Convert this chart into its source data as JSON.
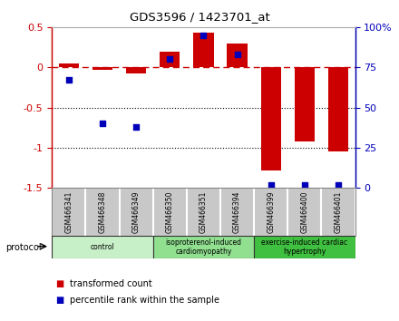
{
  "title": "GDS3596 / 1423701_at",
  "samples": [
    "GSM466341",
    "GSM466348",
    "GSM466349",
    "GSM466350",
    "GSM466351",
    "GSM466394",
    "GSM466399",
    "GSM466400",
    "GSM466401"
  ],
  "transformed_count": [
    0.05,
    -0.03,
    -0.08,
    0.2,
    0.43,
    0.3,
    -1.28,
    -0.92,
    -1.05
  ],
  "percentile_rank_pct": [
    67,
    40,
    38,
    80,
    95,
    83,
    2,
    2,
    2
  ],
  "ylim_left": [
    -1.5,
    0.5
  ],
  "ylim_right": [
    0,
    100
  ],
  "yticks_left": [
    -1.5,
    -1.0,
    -0.5,
    0.0,
    0.5
  ],
  "ytick_labels_left": [
    "-1.5",
    "-1",
    "-0.5",
    "0",
    "0.5"
  ],
  "yticks_right": [
    0,
    25,
    50,
    75,
    100
  ],
  "ytick_labels_right": [
    "0",
    "25",
    "50",
    "75",
    "100%"
  ],
  "hlines_dotted": [
    -0.5,
    -1.0
  ],
  "hline_dash": 0.0,
  "protocol_groups": [
    {
      "label": "control",
      "start": 0,
      "end": 3,
      "color": "#c8f0c8"
    },
    {
      "label": "isoproterenol-induced\ncardiomyopathy",
      "start": 3,
      "end": 6,
      "color": "#90e090"
    },
    {
      "label": "exercise-induced cardiac\nhypertrophy",
      "start": 6,
      "end": 9,
      "color": "#40c040"
    }
  ],
  "bar_color_red": "#cc0000",
  "bar_color_blue": "#0000bb",
  "dash_color": "#cc0000",
  "dot_color": "#000000",
  "bg_color": "#ffffff",
  "plot_bg": "#ffffff",
  "tick_area_bg": "#c8c8c8",
  "legend_red_label": "transformed count",
  "legend_blue_label": "percentile rank within the sample",
  "protocol_label": "protocol",
  "bar_width": 0.6
}
